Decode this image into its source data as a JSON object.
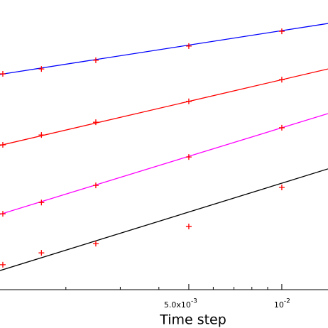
{
  "chart_data": {
    "type": "line",
    "xlabel": "Time step",
    "xscale": "log",
    "x": [
      0.00125,
      0.0016667,
      0.0025,
      0.005,
      0.01
    ],
    "xlim": [
      0.001224,
      0.01411
    ],
    "xticks": [
      {
        "value": 0.005,
        "label": "5.0x10",
        "exponent": "-3"
      },
      {
        "value": 0.01,
        "label": "10",
        "exponent": "-2"
      }
    ],
    "xminorticks": [
      0.002,
      0.003,
      0.004,
      0.006,
      0.007,
      0.008,
      0.009
    ],
    "ylim": [
      0,
      100
    ],
    "marker_color": "#ff0000",
    "series": [
      {
        "color": "#0000ff",
        "values": [
          74.5,
          76.2,
          79.2,
          84.1,
          89.2
        ],
        "fit": [
          74.3,
          91.9
        ]
      },
      {
        "color": "#ff0000",
        "values": [
          50.0,
          53.4,
          57.8,
          65.0,
          72.5
        ],
        "fit": [
          49.8,
          76.2
        ]
      },
      {
        "color": "#ff00ff",
        "values": [
          26.2,
          30.1,
          36.0,
          45.8,
          55.9
        ],
        "fit": [
          26.0,
          60.8
        ]
      },
      {
        "color": "#000000",
        "values": [
          8.6,
          12.7,
          15.9,
          21.8,
          35.3
        ],
        "fit": [
          6.6,
          41.7
        ]
      }
    ]
  }
}
